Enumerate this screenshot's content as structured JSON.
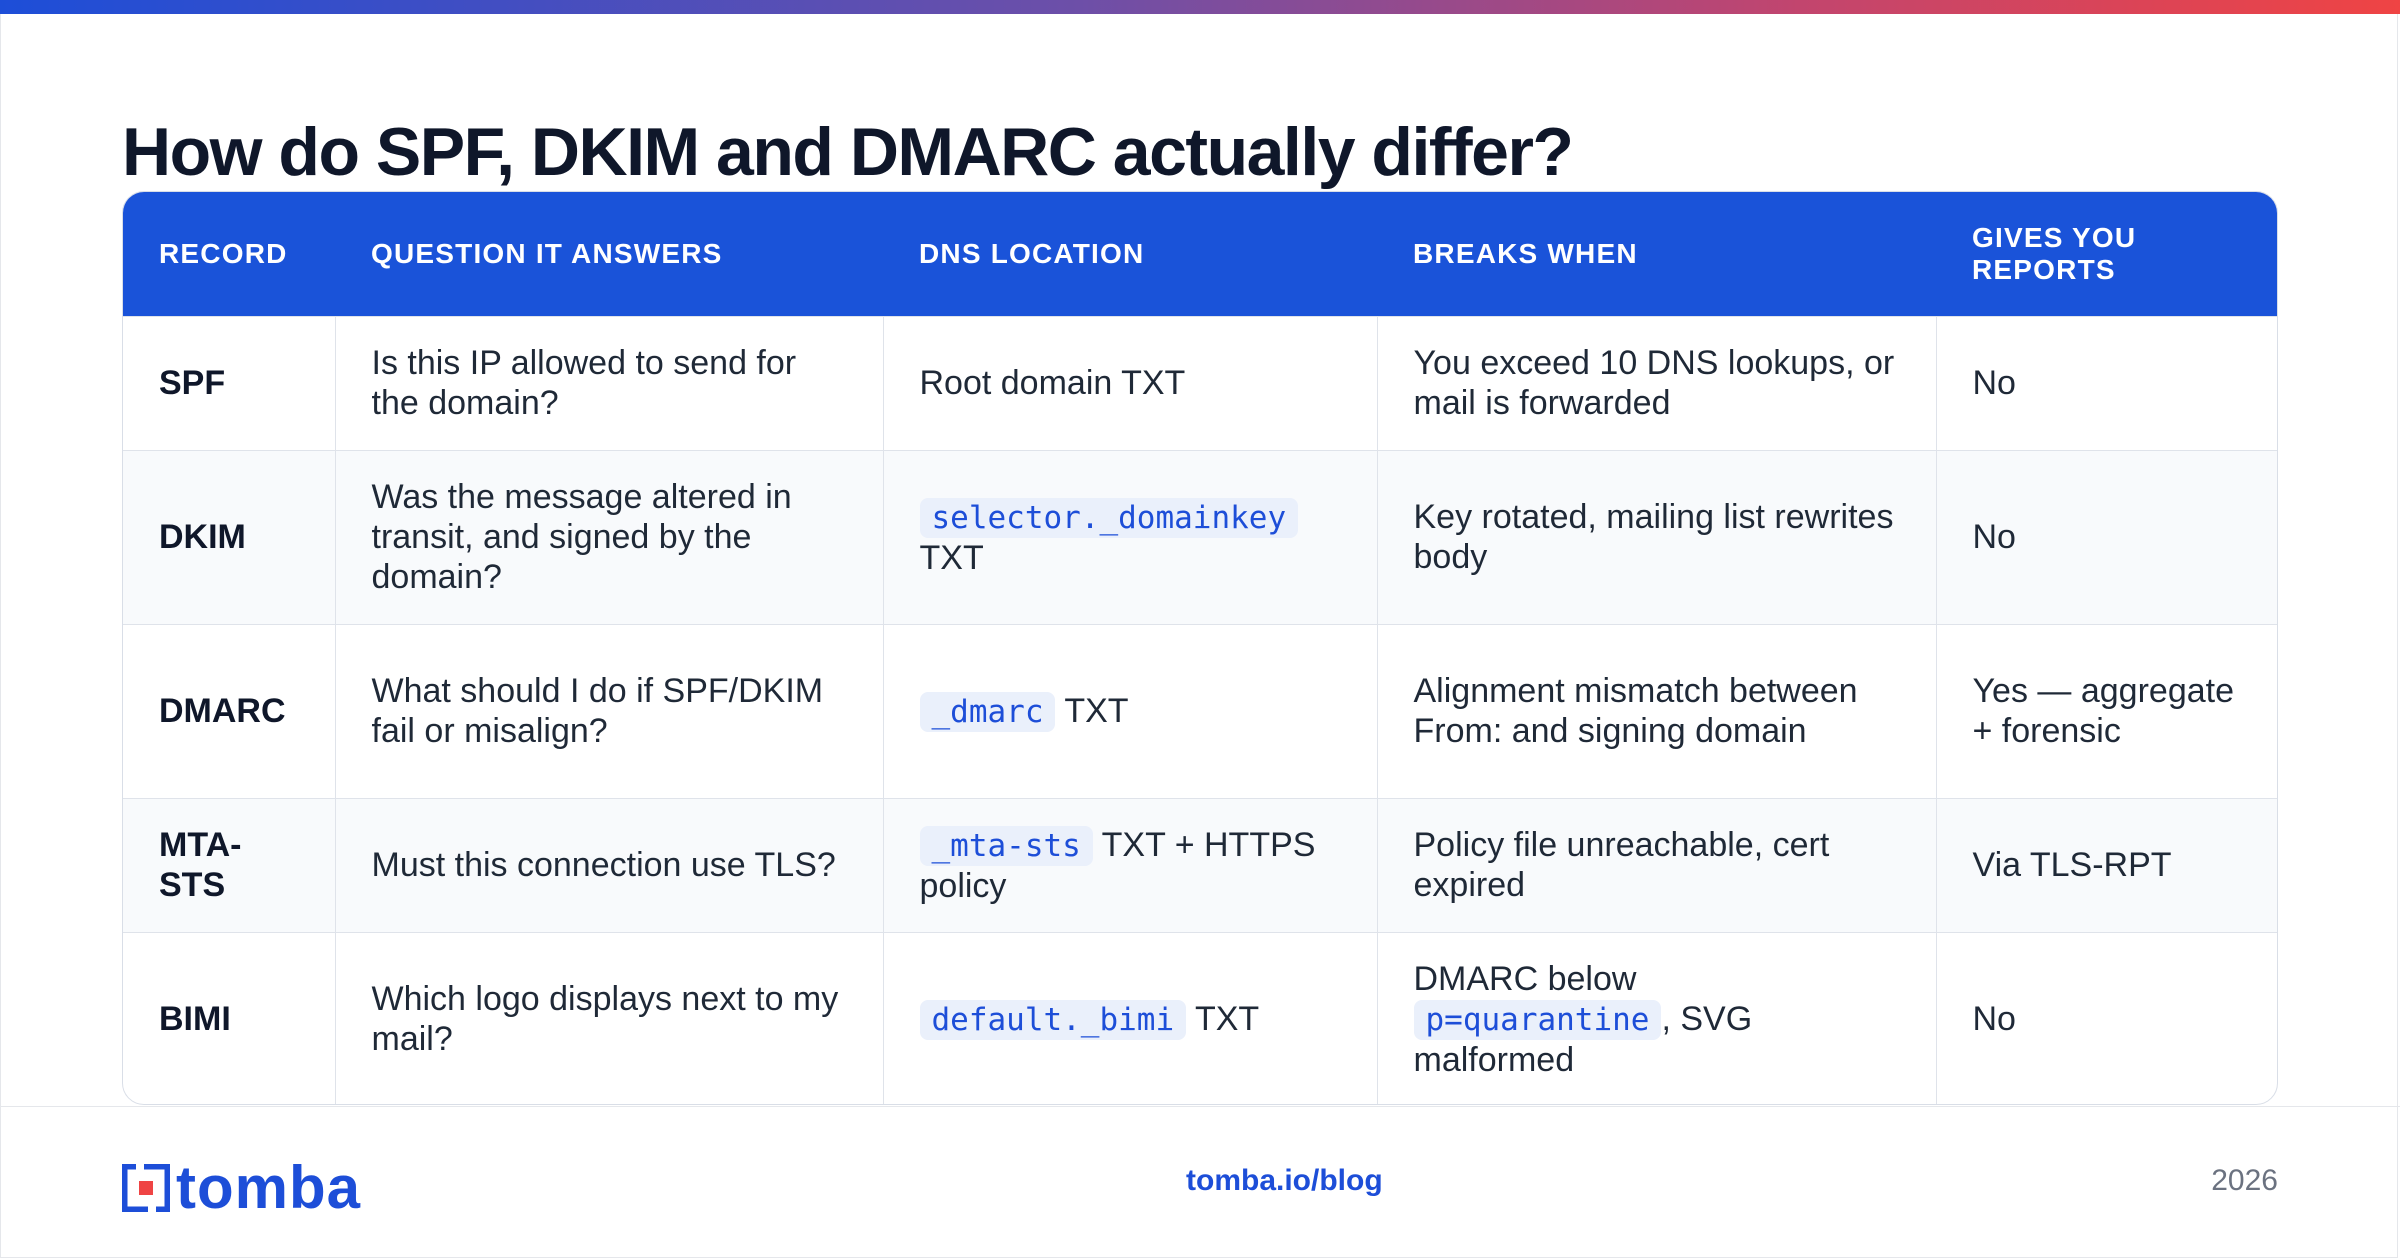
{
  "title": "How do SPF, DKIM and DMARC actually differ?",
  "table": {
    "headers": [
      "RECORD",
      "QUESTION IT ANSWERS",
      "DNS LOCATION",
      "BREAKS WHEN",
      "GIVES YOU REPORTS"
    ],
    "rows": [
      {
        "record": "SPF",
        "question": "Is this IP allowed to send for the domain?",
        "dns_code": "",
        "dns_text": "Root domain TXT",
        "breaks_pre": "You exceed 10 DNS lookups, or mail is forwarded",
        "breaks_code": "",
        "breaks_post": "",
        "reports": "No"
      },
      {
        "record": "DKIM",
        "question": "Was the message altered in transit, and signed by the domain?",
        "dns_code": "selector._domainkey",
        "dns_text": "TXT",
        "breaks_pre": "Key rotated, mailing list rewrites body",
        "breaks_code": "",
        "breaks_post": "",
        "reports": "No"
      },
      {
        "record": "DMARC",
        "question": "What should I do if SPF/DKIM fail or misalign?",
        "dns_code": "_dmarc",
        "dns_text": "TXT",
        "breaks_pre": "Alignment mismatch between From: and signing domain",
        "breaks_code": "",
        "breaks_post": "",
        "reports": "Yes — aggregate + forensic"
      },
      {
        "record": "MTA-STS",
        "question": "Must this connection use TLS?",
        "dns_code": "_mta-sts",
        "dns_text": "TXT + HTTPS policy",
        "breaks_pre": "Policy file unreachable, cert expired",
        "breaks_code": "",
        "breaks_post": "",
        "reports": "Via TLS-RPT"
      },
      {
        "record": "BIMI",
        "question": "Which logo displays next to my mail?",
        "dns_code": "default._bimi",
        "dns_text": "TXT",
        "breaks_pre": "DMARC below",
        "breaks_code": "p=quarantine",
        "breaks_post": ", SVG malformed",
        "reports": "No"
      }
    ]
  },
  "footer": {
    "logo_text": "tomba",
    "link": "tomba.io/blog",
    "year": "2026"
  },
  "colors": {
    "accent": "#1a53d9",
    "code_bg": "#eaf0fb",
    "code_fg": "#1d4ed8"
  }
}
